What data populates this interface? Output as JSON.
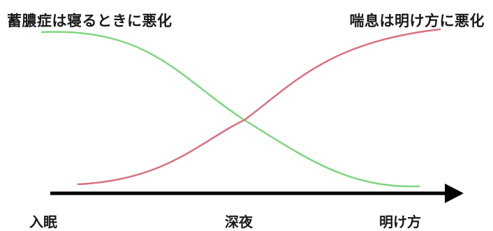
{
  "labels": {
    "sinusitis": "蓄膿症は寝るときに悪化",
    "asthma": "喘息は明け方に悪化"
  },
  "time_axis": {
    "start": "入眠",
    "middle": "深夜",
    "end": "明け方"
  },
  "colors": {
    "sinusitis_curve": "#7fd67f",
    "asthma_curve": "#d9707e",
    "axis": "#000000"
  }
}
